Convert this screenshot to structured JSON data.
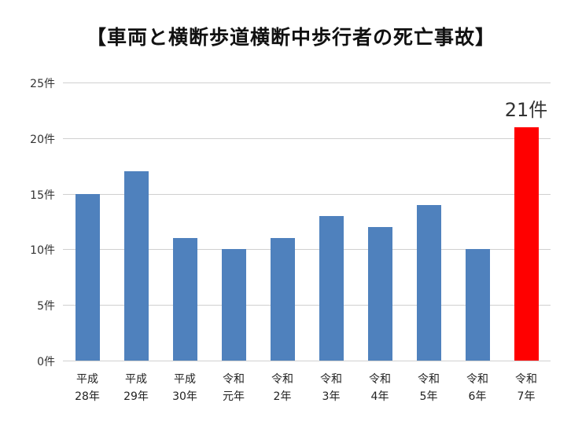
{
  "chart_data": {
    "type": "bar",
    "title": "【車両と横断歩道横断中歩行者の死亡事故】",
    "xlabel": "",
    "ylabel": "",
    "categories": [
      "平成28年",
      "平成29年",
      "平成30年",
      "令和元年",
      "令和2年",
      "令和3年",
      "令和4年",
      "令和5年",
      "令和6年",
      "令和7年"
    ],
    "category_lines": [
      [
        "平成",
        "28年"
      ],
      [
        "平成",
        "29年"
      ],
      [
        "平成",
        "30年"
      ],
      [
        "令和",
        "元年"
      ],
      [
        "令和",
        "2年"
      ],
      [
        "令和",
        "3年"
      ],
      [
        "令和",
        "4年"
      ],
      [
        "令和",
        "5年"
      ],
      [
        "令和",
        "6年"
      ],
      [
        "令和",
        "7年"
      ]
    ],
    "values": [
      15,
      17,
      11,
      10,
      11,
      13,
      12,
      14,
      10,
      21
    ],
    "unit": "件",
    "ylim": [
      0,
      25
    ],
    "yticks": [
      0,
      5,
      10,
      15,
      20,
      25
    ],
    "ytick_labels": [
      "0件",
      "5件",
      "10件",
      "15件",
      "20件",
      "25件"
    ],
    "grid": true,
    "legend": null,
    "colors": {
      "default": "#4f81bd",
      "highlight": "#ff0000",
      "grid": "#d0d0d0"
    },
    "highlight_index": 9,
    "annotations": [
      {
        "category": "令和7年",
        "text": "21件"
      }
    ]
  }
}
